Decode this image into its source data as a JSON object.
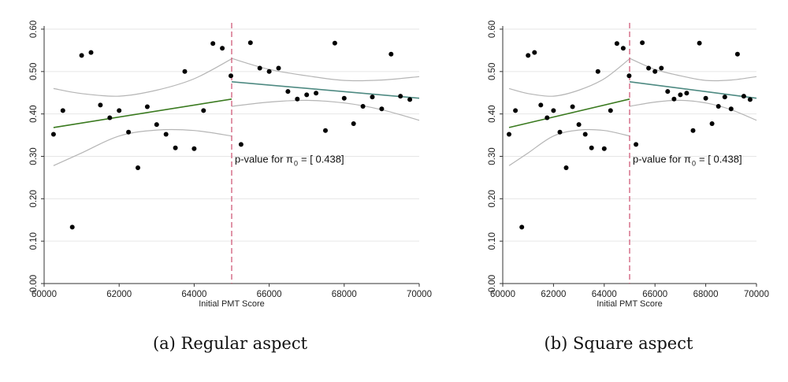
{
  "chart_data": [
    {
      "type": "scatter",
      "caption": "(a) Regular aspect",
      "xlabel": "Initial PMT Score",
      "ylabel": "",
      "xlim": [
        60000,
        70000
      ],
      "ylim": [
        0,
        0.6
      ],
      "x_ticks": [
        60000,
        62000,
        64000,
        66000,
        68000,
        70000
      ],
      "x_tick_labels": [
        "60000",
        "62000",
        "64000",
        "66000",
        "68000",
        "70000"
      ],
      "y_ticks": [
        0,
        0.1,
        0.2,
        0.3,
        0.4,
        0.5,
        0.6
      ],
      "y_tick_labels": [
        "0.00",
        "0.10",
        "0.20",
        "0.30",
        "0.40",
        "0.50",
        "0.60"
      ],
      "grid": true,
      "cutoff": 65000,
      "annotation": {
        "text": "p-value for π",
        "subscript": "0",
        "value": "= [ 0.438]",
        "x": 65000,
        "y": 0.285
      },
      "points": [
        [
          60250,
          0.352
        ],
        [
          60500,
          0.408
        ],
        [
          60750,
          0.133
        ],
        [
          61000,
          0.538
        ],
        [
          61250,
          0.545
        ],
        [
          61500,
          0.421
        ],
        [
          61750,
          0.391
        ],
        [
          62000,
          0.408
        ],
        [
          62250,
          0.357
        ],
        [
          62500,
          0.273
        ],
        [
          62750,
          0.417
        ],
        [
          63000,
          0.375
        ],
        [
          63250,
          0.352
        ],
        [
          63500,
          0.32
        ],
        [
          63750,
          0.5
        ],
        [
          64000,
          0.318
        ],
        [
          64250,
          0.408
        ],
        [
          64500,
          0.566
        ],
        [
          64750,
          0.555
        ],
        [
          64980,
          0.49
        ],
        [
          65250,
          0.328
        ],
        [
          65500,
          0.568
        ],
        [
          65750,
          0.508
        ],
        [
          66000,
          0.5
        ],
        [
          66250,
          0.508
        ],
        [
          66500,
          0.453
        ],
        [
          66750,
          0.435
        ],
        [
          67000,
          0.445
        ],
        [
          67250,
          0.449
        ],
        [
          67500,
          0.361
        ],
        [
          67750,
          0.567
        ],
        [
          68000,
          0.437
        ],
        [
          68250,
          0.377
        ],
        [
          68500,
          0.418
        ],
        [
          68750,
          0.44
        ],
        [
          69000,
          0.412
        ],
        [
          69250,
          0.541
        ],
        [
          69500,
          0.442
        ],
        [
          69750,
          0.434
        ]
      ],
      "fit_left": [
        [
          60250,
          0.368
        ],
        [
          65000,
          0.435
        ]
      ],
      "fit_right": [
        [
          65000,
          0.476
        ],
        [
          70000,
          0.437
        ]
      ],
      "ci_left_upper": [
        [
          60250,
          0.46
        ],
        [
          61000,
          0.448
        ],
        [
          62000,
          0.442
        ],
        [
          63000,
          0.456
        ],
        [
          64000,
          0.483
        ],
        [
          65000,
          0.53
        ]
      ],
      "ci_left_lower": [
        [
          60250,
          0.278
        ],
        [
          61000,
          0.308
        ],
        [
          62000,
          0.348
        ],
        [
          63000,
          0.362
        ],
        [
          64000,
          0.361
        ],
        [
          65000,
          0.348
        ]
      ],
      "ci_right_upper": [
        [
          65000,
          0.531
        ],
        [
          66000,
          0.505
        ],
        [
          67000,
          0.49
        ],
        [
          68000,
          0.479
        ],
        [
          69000,
          0.48
        ],
        [
          70000,
          0.488
        ]
      ],
      "ci_right_lower": [
        [
          65000,
          0.418
        ],
        [
          66000,
          0.428
        ],
        [
          67000,
          0.432
        ],
        [
          68000,
          0.426
        ],
        [
          69000,
          0.41
        ],
        [
          70000,
          0.385
        ]
      ]
    },
    {
      "type": "scatter",
      "caption": "(b) Square aspect",
      "xlabel": "Initial PMT Score",
      "ylabel": "",
      "xlim": [
        60000,
        70000
      ],
      "ylim": [
        0,
        0.6
      ],
      "x_ticks": [
        60000,
        62000,
        64000,
        66000,
        68000,
        70000
      ],
      "x_tick_labels": [
        "60000",
        "62000",
        "64000",
        "66000",
        "68000",
        "70000"
      ],
      "y_ticks": [
        0,
        0.1,
        0.2,
        0.3,
        0.4,
        0.5,
        0.6
      ],
      "y_tick_labels": [
        "0.00",
        "0.10",
        "0.20",
        "0.30",
        "0.40",
        "0.50",
        "0.60"
      ],
      "grid": true,
      "cutoff": 65000,
      "annotation": {
        "text": "p-value for π",
        "subscript": "0",
        "value": "= [ 0.438]",
        "x": 65000,
        "y": 0.285
      },
      "points": [
        [
          60250,
          0.352
        ],
        [
          60500,
          0.408
        ],
        [
          60750,
          0.133
        ],
        [
          61000,
          0.538
        ],
        [
          61250,
          0.545
        ],
        [
          61500,
          0.421
        ],
        [
          61750,
          0.391
        ],
        [
          62000,
          0.408
        ],
        [
          62250,
          0.357
        ],
        [
          62500,
          0.273
        ],
        [
          62750,
          0.417
        ],
        [
          63000,
          0.375
        ],
        [
          63250,
          0.352
        ],
        [
          63500,
          0.32
        ],
        [
          63750,
          0.5
        ],
        [
          64000,
          0.318
        ],
        [
          64250,
          0.408
        ],
        [
          64500,
          0.566
        ],
        [
          64750,
          0.555
        ],
        [
          64980,
          0.49
        ],
        [
          65250,
          0.328
        ],
        [
          65500,
          0.568
        ],
        [
          65750,
          0.508
        ],
        [
          66000,
          0.5
        ],
        [
          66250,
          0.508
        ],
        [
          66500,
          0.453
        ],
        [
          66750,
          0.435
        ],
        [
          67000,
          0.445
        ],
        [
          67250,
          0.449
        ],
        [
          67500,
          0.361
        ],
        [
          67750,
          0.567
        ],
        [
          68000,
          0.437
        ],
        [
          68250,
          0.377
        ],
        [
          68500,
          0.418
        ],
        [
          68750,
          0.44
        ],
        [
          69000,
          0.412
        ],
        [
          69250,
          0.541
        ],
        [
          69500,
          0.442
        ],
        [
          69750,
          0.434
        ]
      ],
      "fit_left": [
        [
          60250,
          0.368
        ],
        [
          65000,
          0.435
        ]
      ],
      "fit_right": [
        [
          65000,
          0.476
        ],
        [
          70000,
          0.437
        ]
      ],
      "ci_left_upper": [
        [
          60250,
          0.46
        ],
        [
          61000,
          0.448
        ],
        [
          62000,
          0.442
        ],
        [
          63000,
          0.456
        ],
        [
          64000,
          0.483
        ],
        [
          65000,
          0.53
        ]
      ],
      "ci_left_lower": [
        [
          60250,
          0.278
        ],
        [
          61000,
          0.308
        ],
        [
          62000,
          0.348
        ],
        [
          63000,
          0.362
        ],
        [
          64000,
          0.361
        ],
        [
          65000,
          0.348
        ]
      ],
      "ci_right_upper": [
        [
          65000,
          0.531
        ],
        [
          66000,
          0.505
        ],
        [
          67000,
          0.49
        ],
        [
          68000,
          0.479
        ],
        [
          69000,
          0.48
        ],
        [
          70000,
          0.488
        ]
      ],
      "ci_right_lower": [
        [
          65000,
          0.418
        ],
        [
          66000,
          0.428
        ],
        [
          67000,
          0.432
        ],
        [
          68000,
          0.426
        ],
        [
          69000,
          0.41
        ],
        [
          70000,
          0.385
        ]
      ]
    }
  ],
  "colors": {
    "points": "#000000",
    "grid": "#e6e6e6",
    "axis": "#333333",
    "cutoff": "#d05a78",
    "fit_left": "#3a7a1f",
    "fit_right": "#4e8a82",
    "ci": "#b5b5b5"
  }
}
